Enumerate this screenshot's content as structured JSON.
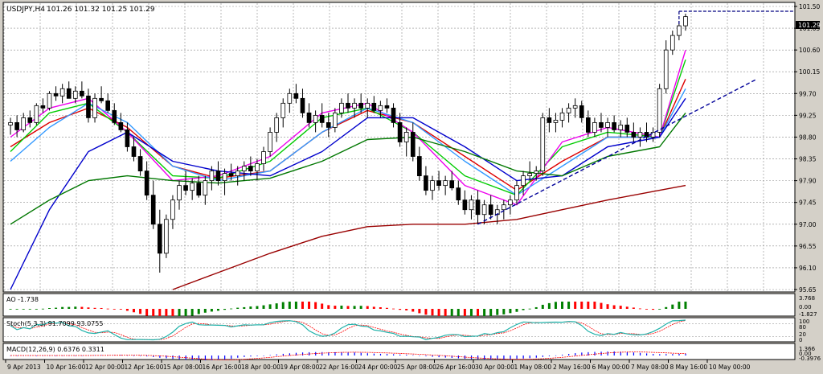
{
  "header": {
    "symbol": "USDJPY,H4",
    "ohlc": "101.26 101.32 101.25 101.29"
  },
  "colors": {
    "background": "#ffffff",
    "frame": "#d4d0c8",
    "grid": "#8c8c8c",
    "candle_up": "#ffffff",
    "candle_down": "#000000",
    "price_line": "#000080",
    "ma_red": "#dd0000",
    "ma_green": "#00cc00",
    "ma_magenta": "#ee00ee",
    "ma_blue": "#0000cc",
    "ma_lightblue": "#3399ff",
    "ma_darkgreen": "#007700",
    "ma_darkred": "#990000",
    "trendline": "#000099",
    "ao_up": "#008000",
    "ao_down": "#ff0000",
    "stoch_main": "#20b2aa",
    "stoch_signal": "#ff0000",
    "macd_hist": "#0000ff",
    "macd_signal": "#ff0000"
  },
  "price_panel": {
    "current_price_label": "101.29",
    "levels": [
      "101.50",
      "101.05",
      "100.60",
      "100.15",
      "99.70",
      "99.25",
      "98.80",
      "98.35",
      "97.90",
      "97.45",
      "97.00",
      "96.55",
      "96.10",
      "95.65"
    ]
  },
  "indicators": {
    "ao": {
      "label": "AO -1.738",
      "levels": [
        "3.768",
        "0.00",
        "-1.827"
      ]
    },
    "stoch": {
      "label": "Stoch(5,3,3) 91.7099 93.0755",
      "levels": [
        "100",
        "80",
        "20",
        "0"
      ]
    },
    "macd": {
      "label": "MACD(12,26,9) 0.6376 0.3311",
      "levels": [
        "1.366",
        "0.00",
        "-0.3976"
      ]
    }
  },
  "x_axis": {
    "labels": [
      "9 Apr 2013",
      "10 Apr 16:00",
      "12 Apr 00:00",
      "12 Apr 16:00",
      "15 Apr 08:00",
      "16 Apr 16:00",
      "18 Apr 00:00",
      "19 Apr 08:00",
      "22 Apr 16:00",
      "24 Apr 00:00",
      "25 Apr 08:00",
      "26 Apr 16:00",
      "30 Apr 00:00",
      "1 May 08:00",
      "2 May 16:00",
      "6 May 00:00",
      "7 May 08:00",
      "8 May 16:00",
      "10 May 00:00"
    ]
  },
  "chart_data": {
    "type": "candlestick",
    "timeframe": "H4",
    "ylim": [
      95.65,
      101.5
    ],
    "candles_ohlc": [
      [
        99.05,
        99.2,
        98.85,
        99.1
      ],
      [
        99.1,
        99.25,
        98.8,
        98.95
      ],
      [
        98.95,
        99.3,
        98.9,
        99.2
      ],
      [
        99.2,
        99.35,
        99.0,
        99.1
      ],
      [
        99.1,
        99.5,
        99.05,
        99.45
      ],
      [
        99.45,
        99.6,
        99.3,
        99.4
      ],
      [
        99.4,
        99.75,
        99.35,
        99.7
      ],
      [
        99.7,
        99.85,
        99.55,
        99.65
      ],
      [
        99.65,
        99.9,
        99.5,
        99.8
      ],
      [
        99.8,
        99.95,
        99.6,
        99.6
      ],
      [
        99.6,
        99.85,
        99.5,
        99.75
      ],
      [
        99.75,
        99.95,
        99.6,
        99.65
      ],
      [
        99.65,
        99.8,
        99.1,
        99.2
      ],
      [
        99.2,
        99.7,
        99.1,
        99.6
      ],
      [
        99.6,
        99.85,
        99.5,
        99.55
      ],
      [
        99.55,
        99.7,
        99.3,
        99.35
      ],
      [
        99.35,
        99.5,
        99.05,
        99.1
      ],
      [
        99.1,
        99.3,
        98.9,
        98.95
      ],
      [
        98.95,
        99.1,
        98.5,
        98.6
      ],
      [
        98.6,
        98.8,
        98.3,
        98.4
      ],
      [
        98.4,
        98.55,
        98.0,
        98.1
      ],
      [
        98.1,
        98.3,
        97.5,
        97.6
      ],
      [
        97.6,
        97.9,
        96.9,
        97.0
      ],
      [
        97.0,
        97.3,
        96.0,
        96.4
      ],
      [
        96.4,
        97.2,
        96.3,
        97.1
      ],
      [
        97.1,
        97.6,
        96.9,
        97.5
      ],
      [
        97.5,
        97.9,
        97.3,
        97.8
      ],
      [
        97.8,
        98.1,
        97.6,
        97.7
      ],
      [
        97.7,
        97.95,
        97.5,
        97.85
      ],
      [
        97.85,
        98.0,
        97.55,
        97.6
      ],
      [
        97.6,
        98.0,
        97.4,
        97.9
      ],
      [
        97.9,
        98.2,
        97.7,
        98.1
      ],
      [
        98.1,
        98.3,
        97.8,
        97.9
      ],
      [
        97.9,
        98.15,
        97.6,
        98.05
      ],
      [
        98.05,
        98.25,
        97.9,
        98.0
      ],
      [
        98.0,
        98.2,
        97.8,
        98.1
      ],
      [
        98.1,
        98.3,
        97.9,
        98.2
      ],
      [
        98.2,
        98.4,
        98.0,
        98.1
      ],
      [
        98.1,
        98.35,
        97.9,
        98.25
      ],
      [
        98.25,
        98.6,
        98.1,
        98.5
      ],
      [
        98.5,
        99.0,
        98.4,
        98.9
      ],
      [
        98.9,
        99.3,
        98.7,
        99.2
      ],
      [
        99.2,
        99.6,
        99.0,
        99.5
      ],
      [
        99.5,
        99.8,
        99.3,
        99.7
      ],
      [
        99.7,
        99.9,
        99.5,
        99.6
      ],
      [
        99.6,
        99.8,
        99.2,
        99.3
      ],
      [
        99.3,
        99.5,
        99.0,
        99.1
      ],
      [
        99.1,
        99.35,
        98.9,
        99.25
      ],
      [
        99.25,
        99.5,
        99.0,
        99.1
      ],
      [
        99.1,
        99.3,
        98.8,
        99.0
      ],
      [
        99.0,
        99.4,
        98.9,
        99.3
      ],
      [
        99.3,
        99.6,
        99.2,
        99.5
      ],
      [
        99.5,
        99.7,
        99.3,
        99.4
      ],
      [
        99.4,
        99.6,
        99.2,
        99.5
      ],
      [
        99.5,
        99.7,
        99.3,
        99.4
      ],
      [
        99.4,
        99.6,
        99.2,
        99.5
      ],
      [
        99.5,
        99.65,
        99.3,
        99.35
      ],
      [
        99.35,
        99.55,
        99.2,
        99.45
      ],
      [
        99.45,
        99.6,
        99.3,
        99.4
      ],
      [
        99.4,
        99.5,
        99.0,
        99.1
      ],
      [
        99.1,
        99.3,
        98.6,
        98.7
      ],
      [
        98.7,
        99.0,
        98.4,
        98.9
      ],
      [
        98.9,
        99.1,
        98.3,
        98.4
      ],
      [
        98.4,
        98.6,
        97.9,
        98.0
      ],
      [
        98.0,
        98.2,
        97.6,
        97.7
      ],
      [
        97.7,
        98.0,
        97.5,
        97.9
      ],
      [
        97.9,
        98.1,
        97.7,
        97.8
      ],
      [
        97.8,
        98.0,
        97.6,
        97.9
      ],
      [
        97.9,
        98.1,
        97.7,
        97.75
      ],
      [
        97.75,
        97.9,
        97.4,
        97.5
      ],
      [
        97.5,
        97.7,
        97.2,
        97.3
      ],
      [
        97.3,
        97.6,
        97.1,
        97.5
      ],
      [
        97.5,
        97.7,
        97.0,
        97.2
      ],
      [
        97.2,
        97.5,
        97.0,
        97.4
      ],
      [
        97.4,
        97.6,
        97.1,
        97.2
      ],
      [
        97.2,
        97.4,
        97.0,
        97.3
      ],
      [
        97.3,
        97.5,
        97.1,
        97.4
      ],
      [
        97.4,
        97.6,
        97.2,
        97.5
      ],
      [
        97.5,
        97.9,
        97.4,
        97.8
      ],
      [
        97.8,
        98.1,
        97.6,
        98.0
      ],
      [
        98.0,
        98.3,
        97.9,
        98.05
      ],
      [
        98.05,
        98.2,
        97.9,
        98.1
      ],
      [
        98.1,
        99.3,
        98.0,
        99.2
      ],
      [
        99.2,
        99.4,
        98.9,
        99.1
      ],
      [
        99.1,
        99.3,
        98.9,
        99.15
      ],
      [
        99.15,
        99.4,
        99.0,
        99.3
      ],
      [
        99.3,
        99.5,
        99.1,
        99.4
      ],
      [
        99.4,
        99.6,
        99.2,
        99.45
      ],
      [
        99.45,
        99.55,
        99.1,
        99.2
      ],
      [
        99.2,
        99.35,
        98.8,
        98.9
      ],
      [
        98.9,
        99.2,
        98.8,
        99.1
      ],
      [
        99.1,
        99.3,
        98.9,
        99.0
      ],
      [
        99.0,
        99.2,
        98.8,
        99.1
      ],
      [
        99.1,
        99.25,
        98.9,
        98.95
      ],
      [
        98.95,
        99.15,
        98.8,
        99.05
      ],
      [
        99.05,
        99.2,
        98.8,
        98.9
      ],
      [
        98.9,
        99.1,
        98.7,
        98.8
      ],
      [
        98.8,
        99.0,
        98.6,
        98.9
      ],
      [
        98.9,
        99.1,
        98.7,
        98.8
      ],
      [
        98.8,
        99.0,
        98.7,
        98.9
      ],
      [
        98.9,
        99.9,
        98.8,
        99.8
      ],
      [
        99.8,
        100.8,
        99.7,
        100.6
      ],
      [
        100.6,
        101.0,
        100.5,
        100.9
      ],
      [
        100.9,
        101.2,
        100.8,
        101.1
      ],
      [
        101.1,
        101.35,
        101.0,
        101.29
      ]
    ],
    "moving_averages": [
      {
        "color": "#dd0000",
        "x": [
          0,
          6,
          12,
          18,
          25,
          32,
          40,
          48,
          55,
          62,
          70,
          78,
          85,
          92,
          100,
          104
        ],
        "y": [
          98.6,
          99.1,
          99.4,
          99.0,
          98.2,
          97.95,
          98.1,
          98.9,
          99.35,
          99.1,
          98.4,
          97.7,
          98.3,
          98.8,
          98.8,
          100.0
        ]
      },
      {
        "color": "#00cc00",
        "x": [
          0,
          6,
          12,
          18,
          25,
          32,
          40,
          48,
          55,
          62,
          70,
          78,
          85,
          92,
          100,
          104
        ],
        "y": [
          98.5,
          99.3,
          99.5,
          98.9,
          98.0,
          97.95,
          98.3,
          99.2,
          99.4,
          98.9,
          98.0,
          97.6,
          98.6,
          98.9,
          98.8,
          100.4
        ]
      },
      {
        "color": "#ee00ee",
        "x": [
          0,
          6,
          12,
          18,
          25,
          32,
          40,
          48,
          55,
          62,
          70,
          78,
          85,
          92,
          100,
          104
        ],
        "y": [
          98.8,
          99.4,
          99.6,
          98.9,
          97.9,
          98.0,
          98.4,
          99.3,
          99.5,
          98.9,
          97.8,
          97.4,
          98.7,
          99.0,
          98.8,
          100.6
        ]
      },
      {
        "color": "#3399ff",
        "x": [
          0,
          6,
          12,
          18,
          25,
          32,
          40,
          48,
          55,
          62,
          70,
          78,
          85,
          92,
          100,
          104
        ],
        "y": [
          98.3,
          99.0,
          99.5,
          99.1,
          98.2,
          97.9,
          98.1,
          98.9,
          99.4,
          99.1,
          98.3,
          97.6,
          98.2,
          98.8,
          98.8,
          99.8
        ]
      },
      {
        "color": "#0000cc",
        "x": [
          0,
          6,
          12,
          18,
          25,
          32,
          40,
          48,
          55,
          62,
          70,
          78,
          85,
          92,
          100,
          104
        ],
        "y": [
          95.65,
          97.3,
          98.5,
          98.9,
          98.3,
          98.1,
          98.0,
          98.5,
          99.2,
          99.2,
          98.6,
          97.9,
          98.0,
          98.6,
          98.8,
          99.6
        ]
      },
      {
        "color": "#007700",
        "x": [
          0,
          6,
          12,
          18,
          25,
          32,
          40,
          48,
          55,
          62,
          70,
          78,
          85,
          92,
          100,
          104
        ],
        "y": [
          97.0,
          97.5,
          97.9,
          98.0,
          97.9,
          97.85,
          97.95,
          98.3,
          98.75,
          98.8,
          98.5,
          98.1,
          98.0,
          98.4,
          98.6,
          99.3
        ]
      },
      {
        "color": "#990000",
        "x": [
          25,
          32,
          40,
          48,
          55,
          62,
          70,
          78,
          85,
          92,
          100,
          104
        ],
        "y": [
          95.65,
          96.0,
          96.4,
          96.75,
          96.95,
          97.0,
          97.0,
          97.1,
          97.3,
          97.5,
          97.7,
          97.8
        ]
      }
    ],
    "trendline": {
      "x": [
        72,
        115
      ],
      "y": [
        97.0,
        100.0
      ]
    },
    "price_line": {
      "from_index": 103,
      "y": 101.4
    }
  }
}
